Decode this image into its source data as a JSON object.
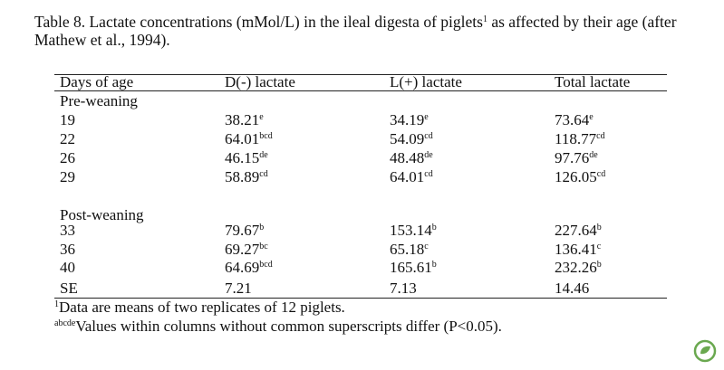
{
  "caption": {
    "text": "Table 8. Lactate concentrations (mMol/L) in the ileal digesta of piglets",
    "sup": "1",
    "rest": "as affected by their age (after Mathew et al., 1994)."
  },
  "table": {
    "headers": [
      "Days of age",
      "D(-) lactate",
      "L(+) lactate",
      "Total lactate"
    ],
    "groups": [
      {
        "label": "Pre-weaning",
        "rows": [
          {
            "day": 19,
            "cells": [
              {
                "value": 38.21,
                "sup": "e"
              },
              {
                "value": 34.19,
                "sup": "e"
              },
              {
                "value": 73.64,
                "sup": "e"
              }
            ]
          },
          {
            "day": 22,
            "cells": [
              {
                "value": 64.01,
                "sup": "bcd"
              },
              {
                "value": 54.09,
                "sup": "cd"
              },
              {
                "value": 118.77,
                "sup": "cd"
              }
            ]
          },
          {
            "day": 26,
            "cells": [
              {
                "value": 46.15,
                "sup": "de"
              },
              {
                "value": 48.48,
                "sup": "de"
              },
              {
                "value": 97.76,
                "sup": "de"
              }
            ]
          },
          {
            "day": 29,
            "cells": [
              {
                "value": 58.89,
                "sup": "cd"
              },
              {
                "value": 64.01,
                "sup": "cd"
              },
              {
                "value": 126.05,
                "sup": "cd"
              }
            ]
          }
        ]
      },
      {
        "label": "Post-weaning",
        "rows": [
          {
            "day": 33,
            "cells": [
              {
                "value": 79.67,
                "sup": "b"
              },
              {
                "value": 153.14,
                "sup": "b"
              },
              {
                "value": 227.64,
                "sup": "b"
              }
            ]
          },
          {
            "day": 36,
            "cells": [
              {
                "value": 69.27,
                "sup": "bc"
              },
              {
                "value": 65.18,
                "sup": "c"
              },
              {
                "value": 136.41,
                "sup": "c"
              }
            ]
          },
          {
            "day": 40,
            "cells": [
              {
                "value": 64.69,
                "sup": "bcd"
              },
              {
                "value": 165.61,
                "sup": "b"
              },
              {
                "value": 232.26,
                "sup": "b"
              }
            ]
          }
        ]
      }
    ],
    "se": {
      "label": "SE",
      "values": [
        7.21,
        7.13,
        14.46
      ]
    }
  },
  "footnotes": [
    {
      "sup": "1",
      "text": "Data are means of two replicates of 12 piglets."
    },
    {
      "sup": "abcde",
      "text": "Values within columns without common superscripts differ (P<0.05)."
    }
  ]
}
